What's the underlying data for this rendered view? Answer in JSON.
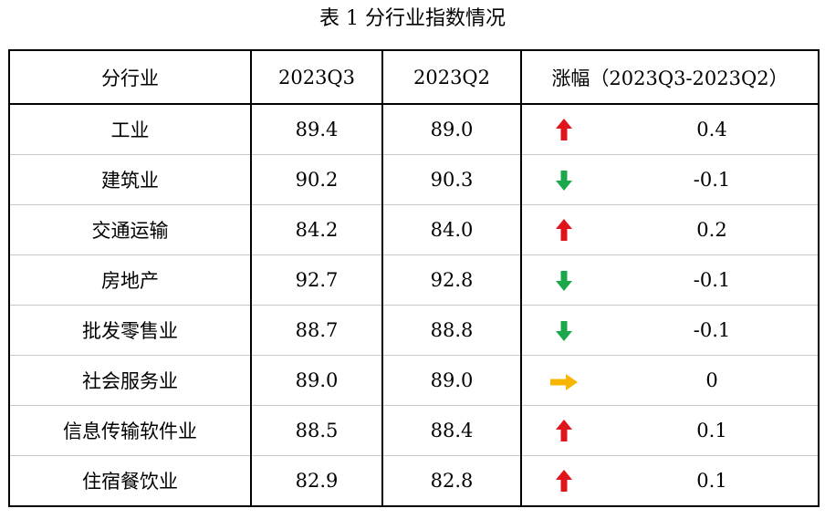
{
  "title": "表 1 分行业指数情况",
  "headers": {
    "industry": "分行业",
    "q3": "2023Q3",
    "q2": "2023Q2",
    "change": "涨幅（2023Q3-2023Q2）"
  },
  "colors": {
    "up": "#e0141b",
    "down": "#1aa84a",
    "flat": "#f7b500"
  },
  "chart_data": {
    "type": "table",
    "title": "表 1 分行业指数情况",
    "columns": [
      "分行业",
      "2023Q3",
      "2023Q2",
      "涨幅（2023Q3-2023Q2）"
    ],
    "rows": [
      {
        "industry": "工业",
        "q3": "89.4",
        "q2": "89.0",
        "change": "0.4",
        "direction": "up"
      },
      {
        "industry": "建筑业",
        "q3": "90.2",
        "q2": "90.3",
        "change": "-0.1",
        "direction": "down"
      },
      {
        "industry": "交通运输",
        "q3": "84.2",
        "q2": "84.0",
        "change": "0.2",
        "direction": "up"
      },
      {
        "industry": "房地产",
        "q3": "92.7",
        "q2": "92.8",
        "change": "-0.1",
        "direction": "down"
      },
      {
        "industry": "批发零售业",
        "q3": "88.7",
        "q2": "88.8",
        "change": "-0.1",
        "direction": "down"
      },
      {
        "industry": "社会服务业",
        "q3": "89.0",
        "q2": "89.0",
        "change": "0",
        "direction": "flat"
      },
      {
        "industry": "信息传输软件业",
        "q3": "88.5",
        "q2": "88.4",
        "change": "0.1",
        "direction": "up"
      },
      {
        "industry": "住宿餐饮业",
        "q3": "82.9",
        "q2": "82.8",
        "change": "0.1",
        "direction": "up"
      }
    ]
  }
}
